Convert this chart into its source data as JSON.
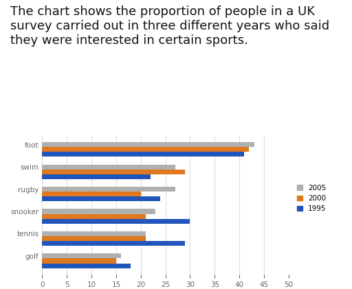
{
  "title": "The chart shows the proportion of people in a UK\nsurvey carried out in three different years who said\nthey were interested in certain sports.",
  "categories": [
    "golf",
    "tennis",
    "snooker",
    "rugby",
    "swim",
    "foot"
  ],
  "series": {
    "2005": [
      16,
      21,
      23,
      27,
      27,
      43
    ],
    "2000": [
      15,
      21,
      21,
      20,
      29,
      42
    ],
    "1995": [
      18,
      29,
      30,
      24,
      22,
      41
    ]
  },
  "colors": {
    "2005": "#b0b0b0",
    "2000": "#e07820",
    "1995": "#2255bb"
  },
  "xlim": [
    0,
    50
  ],
  "xticks": [
    0,
    5,
    10,
    15,
    20,
    25,
    30,
    35,
    40,
    45,
    50
  ],
  "bar_height": 0.22,
  "background_color": "#ffffff",
  "title_fontsize": 13,
  "legend_fontsize": 7.5,
  "tick_fontsize": 7.5,
  "label_fontsize": 7.5
}
